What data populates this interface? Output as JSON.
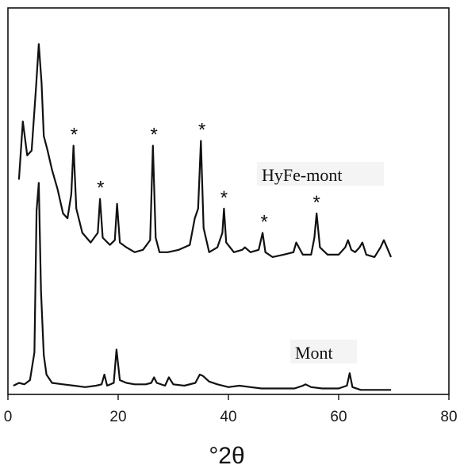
{
  "chart_data": {
    "type": "line",
    "title": "",
    "xlabel": "°2θ",
    "ylabel": "",
    "xlim": [
      0,
      80
    ],
    "xticks": [
      0,
      20,
      40,
      60,
      80
    ],
    "yticks_shown": false,
    "grid": false,
    "legend": "none",
    "series": [
      {
        "name": "HyFe-mont",
        "color": "#111111",
        "x": [
          2,
          2.7,
          3.5,
          4.3,
          5.1,
          5.6,
          6.1,
          6.5,
          7.2,
          8,
          9,
          10,
          10.8,
          11.5,
          11.9,
          12.4,
          13.5,
          15,
          16.3,
          16.7,
          17.2,
          18.5,
          19.4,
          19.8,
          20.3,
          21.5,
          23,
          24.5,
          25.8,
          26.3,
          26.8,
          27.5,
          29,
          31,
          33,
          33.9,
          34.5,
          35,
          35.5,
          36.5,
          38,
          38.9,
          39.2,
          39.6,
          41,
          42.5,
          43,
          44,
          45.5,
          46.2,
          46.7,
          48,
          50,
          51.8,
          52.3,
          53.5,
          55,
          55.6,
          56,
          56.6,
          58,
          60,
          61.2,
          61.7,
          62.3,
          63,
          63.8,
          64.3,
          65,
          66.5,
          67.6,
          68.2,
          69.5
        ],
        "y": [
          34,
          58,
          44,
          46,
          72,
          90,
          74,
          52,
          46,
          38,
          30,
          20,
          18,
          28,
          48,
          22,
          12,
          8,
          12,
          26,
          10,
          7,
          9,
          24,
          8,
          6,
          4,
          5,
          9,
          48,
          10,
          4,
          4,
          5,
          7,
          18,
          22,
          50,
          14,
          4,
          6,
          12,
          22,
          8,
          4,
          5,
          6,
          4,
          5,
          12,
          4,
          2,
          3,
          4,
          8,
          3,
          3,
          10,
          20,
          6,
          3,
          3,
          6,
          9,
          5,
          4,
          6,
          8,
          3,
          2,
          6,
          9,
          2
        ]
      },
      {
        "name": "Mont",
        "color": "#111111",
        "x": [
          1,
          2,
          3,
          4,
          4.8,
          5.2,
          5.6,
          6,
          6.5,
          7,
          8,
          10,
          12,
          14,
          16,
          17,
          17.5,
          18,
          19.2,
          19.7,
          20.3,
          21.5,
          23,
          25,
          26,
          26.5,
          27,
          28.5,
          29.2,
          30,
          32,
          34,
          34.8,
          35.4,
          36.5,
          38,
          40,
          42,
          44,
          46,
          48,
          50,
          52,
          53.5,
          54,
          55,
          57,
          59,
          60,
          61.5,
          62,
          62.5,
          64,
          66,
          68,
          69.5
        ],
        "y": [
          4,
          6,
          5,
          8,
          28,
          130,
          150,
          72,
          26,
          12,
          6,
          5,
          4,
          3,
          4,
          5,
          12,
          4,
          6,
          30,
          8,
          6,
          5,
          5,
          6,
          10,
          6,
          4,
          10,
          5,
          4,
          6,
          12,
          11,
          7,
          5,
          3,
          4,
          3,
          2,
          2,
          2,
          2,
          4,
          5,
          3,
          2,
          2,
          2,
          4,
          13,
          3,
          1,
          1,
          1,
          1
        ]
      }
    ],
    "annotations": [
      {
        "text": "*",
        "x": 12,
        "series": "HyFe-mont"
      },
      {
        "text": "*",
        "x": 16.8,
        "series": "HyFe-mont"
      },
      {
        "text": "*",
        "x": 26.5,
        "series": "HyFe-mont"
      },
      {
        "text": "*",
        "x": 35.2,
        "series": "HyFe-mont"
      },
      {
        "text": "*",
        "x": 39.2,
        "series": "HyFe-mont"
      },
      {
        "text": "*",
        "x": 46.5,
        "series": "HyFe-mont"
      },
      {
        "text": "*",
        "x": 56,
        "series": "HyFe-mont"
      }
    ],
    "series_labels": [
      {
        "text": "HyFe-mont",
        "series": "HyFe-mont"
      },
      {
        "text": "Mont",
        "series": "Mont"
      }
    ]
  }
}
